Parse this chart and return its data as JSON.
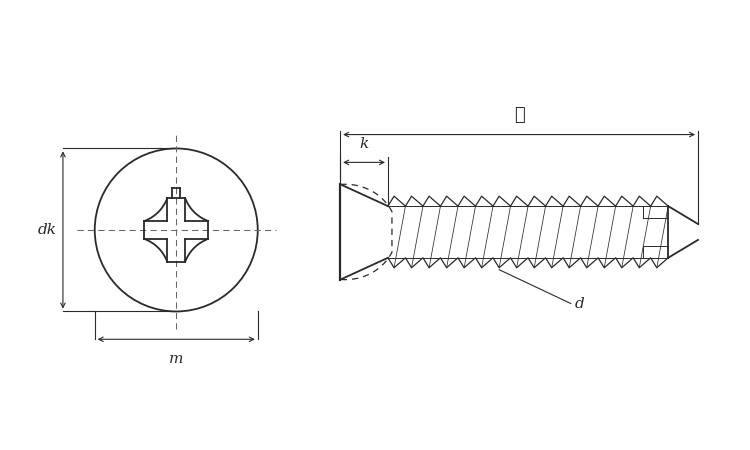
{
  "bg_color": "#ffffff",
  "line_color": "#2a2a2a",
  "dim_color": "#2a2a2a",
  "dash_color": "#666666",
  "figsize": [
    7.5,
    4.5
  ],
  "dpi": 100,
  "labels": {
    "dk": "dk",
    "m": "m",
    "k": "k",
    "l": "ℓ",
    "d": "d"
  }
}
